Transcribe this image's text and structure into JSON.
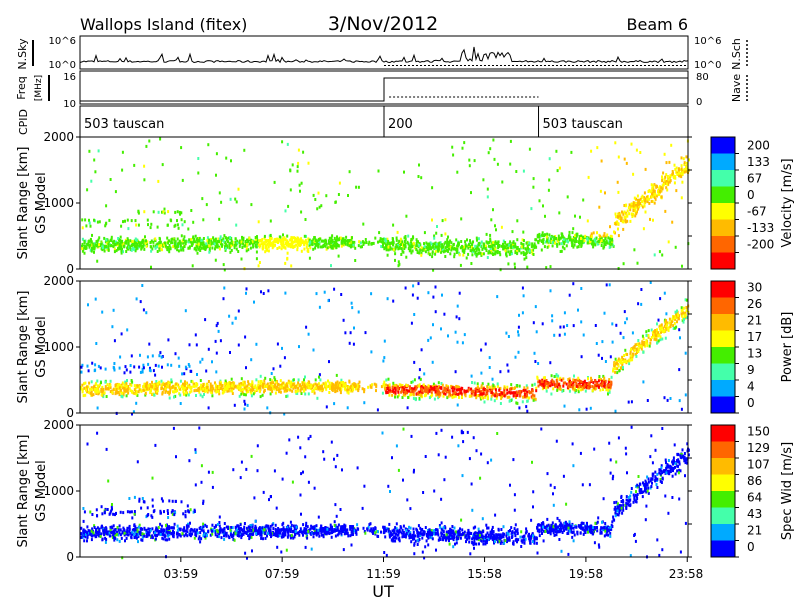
{
  "header": {
    "station": "Wallops Island  (fitex)",
    "date": "3/Nov/2012",
    "beam": "Beam 6"
  },
  "xaxis": {
    "label": "UT",
    "ticks": [
      "03:59",
      "07:59",
      "11:59",
      "15:58",
      "19:58",
      "23:58"
    ],
    "tick_hours": [
      3.98,
      7.98,
      11.98,
      15.97,
      19.97,
      23.97
    ],
    "range_hours": [
      0,
      24
    ]
  },
  "top_panels": {
    "nsky": {
      "label": "N.Sky",
      "right_label": "N.Sch",
      "ticks": [
        "10^6",
        "10^0"
      ],
      "right_ticks": [
        "10^6",
        "10^0"
      ]
    },
    "freq": {
      "label": "Freq",
      "unit": "[MHz]",
      "ticks": [
        "16",
        "10"
      ],
      "right_label": "Nave",
      "right_ticks": [
        "80",
        "0"
      ]
    },
    "cpid": {
      "label": "CPID",
      "segments": [
        {
          "name": "503 tauscan",
          "start": 0,
          "end": 12.0
        },
        {
          "name": "200",
          "start": 12.0,
          "end": 18.1
        },
        {
          "name": "503 tauscan",
          "start": 18.1,
          "end": 24
        }
      ]
    }
  },
  "chart_data": [
    {
      "type": "heatmap",
      "ylabel": "Slant Range [km]",
      "sublabel": "GS Model",
      "ylim": [
        0,
        2000
      ],
      "yticks": [
        "2000",
        "1000",
        "0"
      ],
      "colorbar_label": "Velocity [m/s]",
      "colorbar_ticks": [
        "200",
        "133",
        "67",
        "0",
        "-67",
        "-133",
        "-200"
      ],
      "colors": [
        "#0000ff",
        "#00aaff",
        "#44ffaa",
        "#44ee00",
        "#ffff00",
        "#ffbb00",
        "#ff6600",
        "#ff0000"
      ],
      "value_range": [
        -200,
        200
      ]
    },
    {
      "type": "heatmap",
      "ylabel": "Slant Range [km]",
      "sublabel": "GS Model",
      "ylim": [
        0,
        2000
      ],
      "yticks": [
        "2000",
        "1000",
        "0"
      ],
      "colorbar_label": "Power [dB]",
      "colorbar_ticks": [
        "30",
        "26",
        "21",
        "17",
        "13",
        "9",
        "4",
        "0"
      ],
      "colors": [
        "#ff0000",
        "#ff6600",
        "#ffbb00",
        "#ffff00",
        "#44ee00",
        "#44ffaa",
        "#00aaff",
        "#0000ff"
      ],
      "value_range": [
        0,
        34
      ]
    },
    {
      "type": "heatmap",
      "ylabel": "Slant Range [km]",
      "sublabel": "GS Model",
      "ylim": [
        0,
        2000
      ],
      "yticks": [
        "2000",
        "1000",
        "0"
      ],
      "colorbar_label": "Spec Wid [m/s]",
      "colorbar_ticks": [
        "150",
        "129",
        "107",
        "86",
        "64",
        "43",
        "21",
        "0"
      ],
      "colors": [
        "#ff0000",
        "#ff6600",
        "#ffbb00",
        "#ffff00",
        "#44ee00",
        "#44ffaa",
        "#00aaff",
        "#0000ff"
      ],
      "value_range": [
        0,
        172
      ]
    }
  ]
}
